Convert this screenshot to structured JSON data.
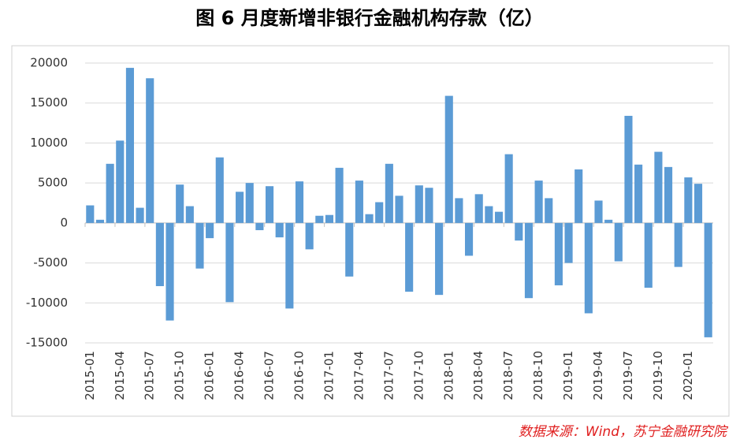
{
  "chart_data": {
    "type": "bar",
    "title": "图 6  月度新增非银行金融机构存款（亿）",
    "source": "数据来源：Wind，苏宁金融研究院",
    "categories": [
      "2015-01",
      null,
      null,
      "2015-04",
      null,
      null,
      "2015-07",
      null,
      null,
      "2015-10",
      null,
      null,
      "2016-01",
      null,
      null,
      "2016-04",
      null,
      null,
      "2016-07",
      null,
      null,
      "2016-10",
      null,
      null,
      "2017-01",
      null,
      null,
      "2017-04",
      null,
      null,
      "2017-07",
      null,
      null,
      "2017-10",
      null,
      null,
      "2018-01",
      null,
      null,
      "2018-04",
      null,
      null,
      "2018-07",
      null,
      null,
      "2018-10",
      null,
      null,
      "2019-01",
      null,
      null,
      "2019-04",
      null,
      null,
      "2019-07",
      null,
      null,
      "2019-10",
      null,
      null,
      "2020-01",
      null,
      null
    ],
    "values": [
      2200,
      400,
      7400,
      10300,
      19400,
      1900,
      18100,
      -7900,
      -12200,
      4800,
      2100,
      -5700,
      -1900,
      8200,
      -9900,
      3900,
      5000,
      -900,
      4600,
      -1800,
      -10700,
      5200,
      -3300,
      900,
      1000,
      6900,
      -6700,
      5300,
      1100,
      2600,
      7400,
      3400,
      -8600,
      4700,
      4400,
      -9000,
      15900,
      3100,
      -4100,
      3600,
      2100,
      1400,
      8600,
      -2200,
      -9400,
      5300,
      3100,
      -7800,
      -5000,
      6700,
      -11300,
      2800,
      400,
      -4800,
      13400,
      7300,
      -8100,
      8900,
      7000,
      -5500,
      5700,
      4900,
      -14300
    ],
    "color": "#5b9bd5",
    "ylim": [
      -15000,
      20000
    ],
    "yticks": [
      -15000,
      -10000,
      -5000,
      0,
      5000,
      10000,
      15000,
      20000
    ],
    "grid": true
  }
}
